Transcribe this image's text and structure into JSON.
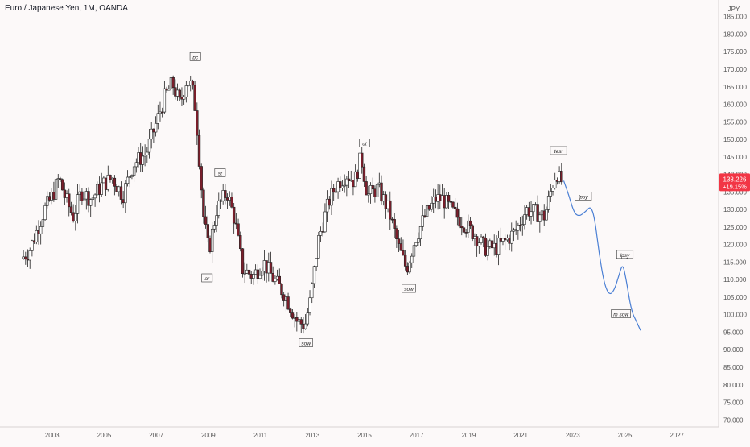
{
  "header": {
    "title": "Euro / Japanese Yen, 1M, OANDA"
  },
  "price_badge": {
    "price": "138.226",
    "change": "+19.15%",
    "color": "#f23645"
  },
  "colors": {
    "background": "#fcf9f9",
    "candle_up": "#ffffff",
    "candle_down": "#7b1e2b",
    "candle_outline": "#222222",
    "projection_line": "#4a7fd4",
    "axis_text": "#555555"
  },
  "chart_data": {
    "type": "candlestick",
    "currency_label": "JPY",
    "x_tick_labels": [
      "2003",
      "2005",
      "2007",
      "2009",
      "2011",
      "2013",
      "2015",
      "2017",
      "2019",
      "2021",
      "2023",
      "2025",
      "2027"
    ],
    "y_tick_labels": [
      "185.000",
      "180.000",
      "175.000",
      "170.000",
      "165.000",
      "160.000",
      "155.000",
      "150.000",
      "145.000",
      "140.000",
      "135.000",
      "130.000",
      "125.000",
      "120.000",
      "115.000",
      "110.000",
      "105.000",
      "100.000",
      "95.000",
      "90.000",
      "85.000",
      "80.000",
      "75.000",
      "70.000"
    ],
    "ylim": [
      68,
      187
    ],
    "xlim": [
      2001.0,
      2028.6
    ],
    "grid": false,
    "price_path": [
      [
        2001.9,
        116
      ],
      [
        2002.2,
        118
      ],
      [
        2002.5,
        124
      ],
      [
        2002.8,
        130
      ],
      [
        2003.1,
        134
      ],
      [
        2003.35,
        139
      ],
      [
        2003.6,
        133
      ],
      [
        2003.9,
        128
      ],
      [
        2004.2,
        135
      ],
      [
        2004.6,
        133
      ],
      [
        2005.0,
        137
      ],
      [
        2005.4,
        139
      ],
      [
        2005.8,
        134
      ],
      [
        2006.2,
        143
      ],
      [
        2006.7,
        146
      ],
      [
        2007.1,
        155
      ],
      [
        2007.4,
        162
      ],
      [
        2007.7,
        166
      ],
      [
        2008.0,
        160
      ],
      [
        2008.25,
        167
      ],
      [
        2008.45,
        165
      ],
      [
        2008.6,
        158
      ],
      [
        2008.9,
        128
      ],
      [
        2009.1,
        118
      ],
      [
        2009.4,
        130
      ],
      [
        2009.8,
        135
      ],
      [
        2010.1,
        127
      ],
      [
        2010.4,
        113
      ],
      [
        2010.8,
        111
      ],
      [
        2011.2,
        115
      ],
      [
        2011.6,
        110
      ],
      [
        2012.0,
        106
      ],
      [
        2012.5,
        98
      ],
      [
        2012.8,
        97
      ],
      [
        2013.0,
        104
      ],
      [
        2013.3,
        121
      ],
      [
        2013.7,
        132
      ],
      [
        2014.0,
        137
      ],
      [
        2014.4,
        140
      ],
      [
        2014.7,
        138
      ],
      [
        2014.95,
        145
      ],
      [
        2015.2,
        134
      ],
      [
        2015.6,
        136
      ],
      [
        2016.0,
        130
      ],
      [
        2016.4,
        119
      ],
      [
        2016.7,
        113
      ],
      [
        2017.0,
        121
      ],
      [
        2017.4,
        128
      ],
      [
        2017.8,
        133
      ],
      [
        2018.1,
        133
      ],
      [
        2018.5,
        129
      ],
      [
        2018.9,
        126
      ],
      [
        2019.3,
        123
      ],
      [
        2019.7,
        119
      ],
      [
        2020.1,
        119
      ],
      [
        2020.5,
        121
      ],
      [
        2020.9,
        124
      ],
      [
        2021.3,
        130
      ],
      [
        2021.7,
        129
      ],
      [
        2022.0,
        128
      ],
      [
        2022.3,
        137
      ],
      [
        2022.45,
        141
      ],
      [
        2022.6,
        138
      ]
    ],
    "projection": [
      [
        2022.65,
        138.2
      ],
      [
        2022.85,
        134
      ],
      [
        2023.05,
        129
      ],
      [
        2023.25,
        128
      ],
      [
        2023.5,
        129.5
      ],
      [
        2023.7,
        131
      ],
      [
        2023.85,
        127
      ],
      [
        2024.0,
        118
      ],
      [
        2024.2,
        109
      ],
      [
        2024.4,
        105.5
      ],
      [
        2024.6,
        107
      ],
      [
        2024.8,
        112
      ],
      [
        2024.92,
        114.5
      ],
      [
        2025.05,
        110
      ],
      [
        2025.25,
        101
      ],
      [
        2025.45,
        98
      ],
      [
        2025.6,
        95.5
      ]
    ],
    "annotations": [
      {
        "text": "bc",
        "x": 2008.5,
        "y": 173.6
      },
      {
        "text": "st",
        "x": 2009.45,
        "y": 140.5
      },
      {
        "text": "ar",
        "x": 2008.95,
        "y": 110.5
      },
      {
        "text": "ut",
        "x": 2015.0,
        "y": 149.0
      },
      {
        "text": "sow",
        "x": 2016.7,
        "y": 107.5
      },
      {
        "text": "sow",
        "x": 2012.75,
        "y": 92.0
      },
      {
        "text": "test",
        "x": 2022.45,
        "y": 146.8
      },
      {
        "text": "lpsy",
        "x": 2023.4,
        "y": 133.8
      },
      {
        "text": "lpsy",
        "x": 2025.0,
        "y": 117.2
      },
      {
        "text": "m sow",
        "x": 2024.85,
        "y": 100.3
      }
    ]
  }
}
